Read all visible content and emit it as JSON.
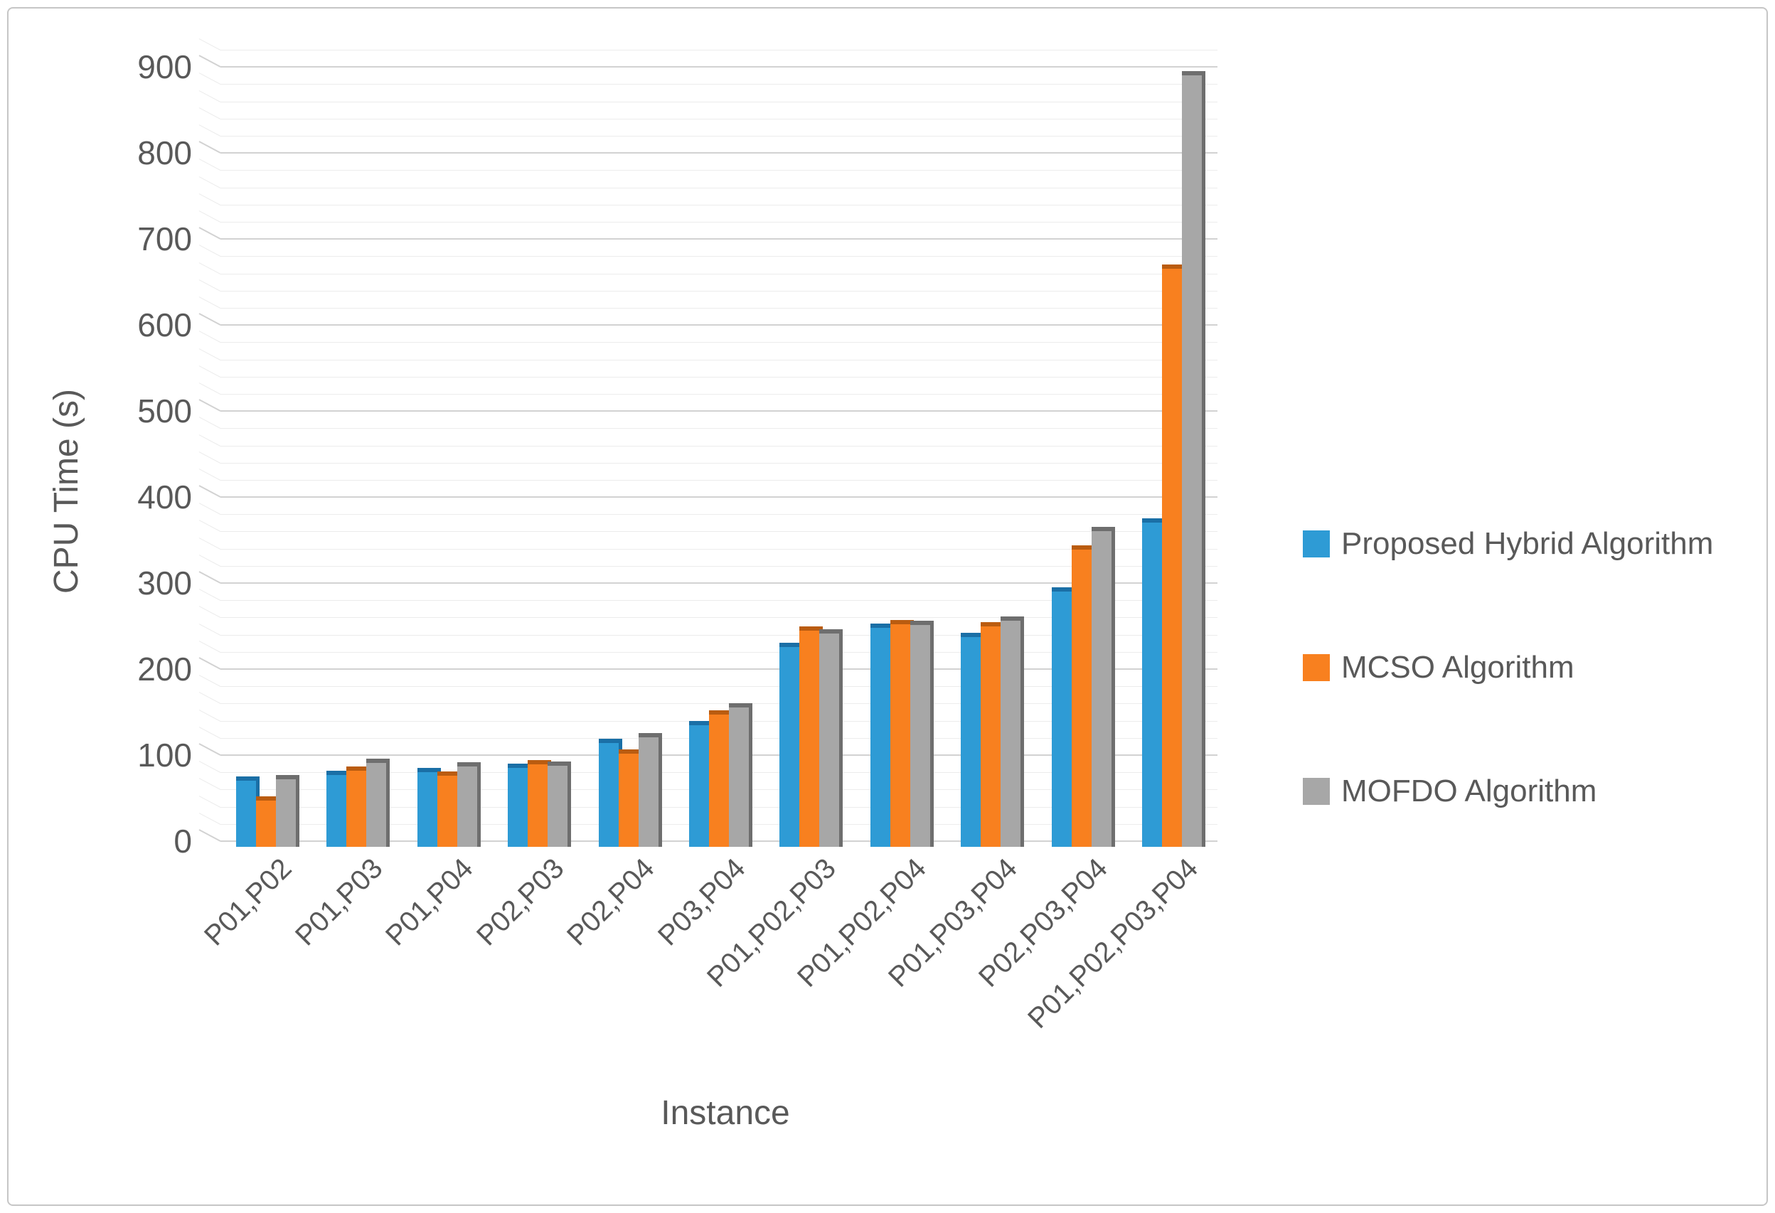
{
  "figure": {
    "background": "#ffffff",
    "border_color": "#c6c6c6",
    "text_color": "#595959",
    "gridline_major_color": "#d2d2d2",
    "gridline_minor_color": "#ececec"
  },
  "chart_data": {
    "type": "bar",
    "title": "",
    "xlabel": "Instance",
    "ylabel": "CPU Time (s)",
    "ylim": [
      0,
      900
    ],
    "y_axis_top_units": 920,
    "y_major_step": 100,
    "y_minor_step": 20,
    "grid": "horizontal major + minor, no vertical grid",
    "legend_position": "right",
    "bar_style": "3d-beveled clustered columns",
    "y_ticks": [
      0,
      100,
      200,
      300,
      400,
      500,
      600,
      700,
      800,
      900
    ],
    "categories": [
      "P01,P02",
      "P01,P03",
      "P01,P04",
      "P02,P03",
      "P02,P04",
      "P03,P04",
      "P01,P02,P03",
      "P01,P02,P04",
      "P01,P03,P04",
      "P02,P03,P04",
      "P01,P02,P03,P04"
    ],
    "series": [
      {
        "name": "Proposed Hybrid Algorithm",
        "color": "#2E9BD5",
        "edge_color": "#1A6FA6",
        "values": [
          75,
          82,
          85,
          90,
          119,
          140,
          231,
          253,
          242,
          295,
          375
        ]
      },
      {
        "name": "MCSO Algorithm",
        "color": "#F8801F",
        "edge_color": "#BA5C10",
        "values": [
          52,
          87,
          81,
          94,
          107,
          152,
          250,
          257,
          255,
          344,
          670
        ]
      },
      {
        "name": "MOFDO Algorithm",
        "color": "#A7A7A7",
        "edge_color": "#6E6E6E",
        "values": [
          77,
          96,
          92,
          93,
          126,
          160,
          246,
          256,
          261,
          365,
          895
        ]
      }
    ]
  }
}
